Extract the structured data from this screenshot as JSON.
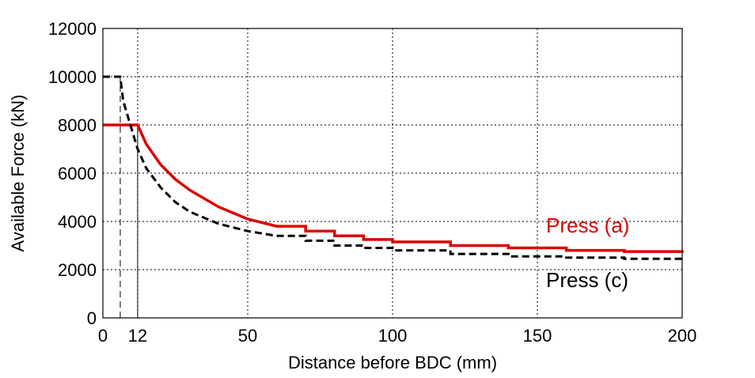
{
  "chart_data": {
    "type": "line",
    "title": "",
    "xlabel": "Distance before BDC (mm)",
    "ylabel": "Available Force (kN)",
    "xlim": [
      0,
      200
    ],
    "ylim": [
      0,
      12000
    ],
    "x_ticks": [
      0,
      12,
      50,
      100,
      150,
      200
    ],
    "y_ticks": [
      0,
      2000,
      4000,
      6000,
      8000,
      10000,
      12000
    ],
    "grid": true,
    "legend": "inline labels right side",
    "series": [
      {
        "name": "Press (a)",
        "color": "#dd0000",
        "style": "solid",
        "x": [
          0,
          12,
          15,
          20,
          25,
          30,
          40,
          50,
          60,
          70,
          80,
          90,
          100,
          120,
          140,
          160,
          180,
          200
        ],
        "y": [
          8000,
          8000,
          7200,
          6350,
          5750,
          5300,
          4600,
          4100,
          3800,
          3600,
          3400,
          3250,
          3150,
          3000,
          2900,
          2800,
          2750,
          2700
        ]
      },
      {
        "name": "Press (c)",
        "color": "#000000",
        "style": "dashed",
        "x": [
          0,
          6,
          7,
          9,
          12,
          15,
          20,
          25,
          30,
          40,
          50,
          60,
          70,
          80,
          90,
          100,
          120,
          140,
          160,
          180,
          200
        ],
        "y": [
          10000,
          10000,
          9000,
          8200,
          7000,
          6200,
          5400,
          4800,
          4400,
          3900,
          3600,
          3400,
          3200,
          3000,
          2900,
          2800,
          2650,
          2550,
          2500,
          2450,
          2450
        ]
      }
    ],
    "reference_lines": [
      {
        "x": 6,
        "style": "dashed"
      },
      {
        "x": 12,
        "style": "solid"
      }
    ]
  }
}
